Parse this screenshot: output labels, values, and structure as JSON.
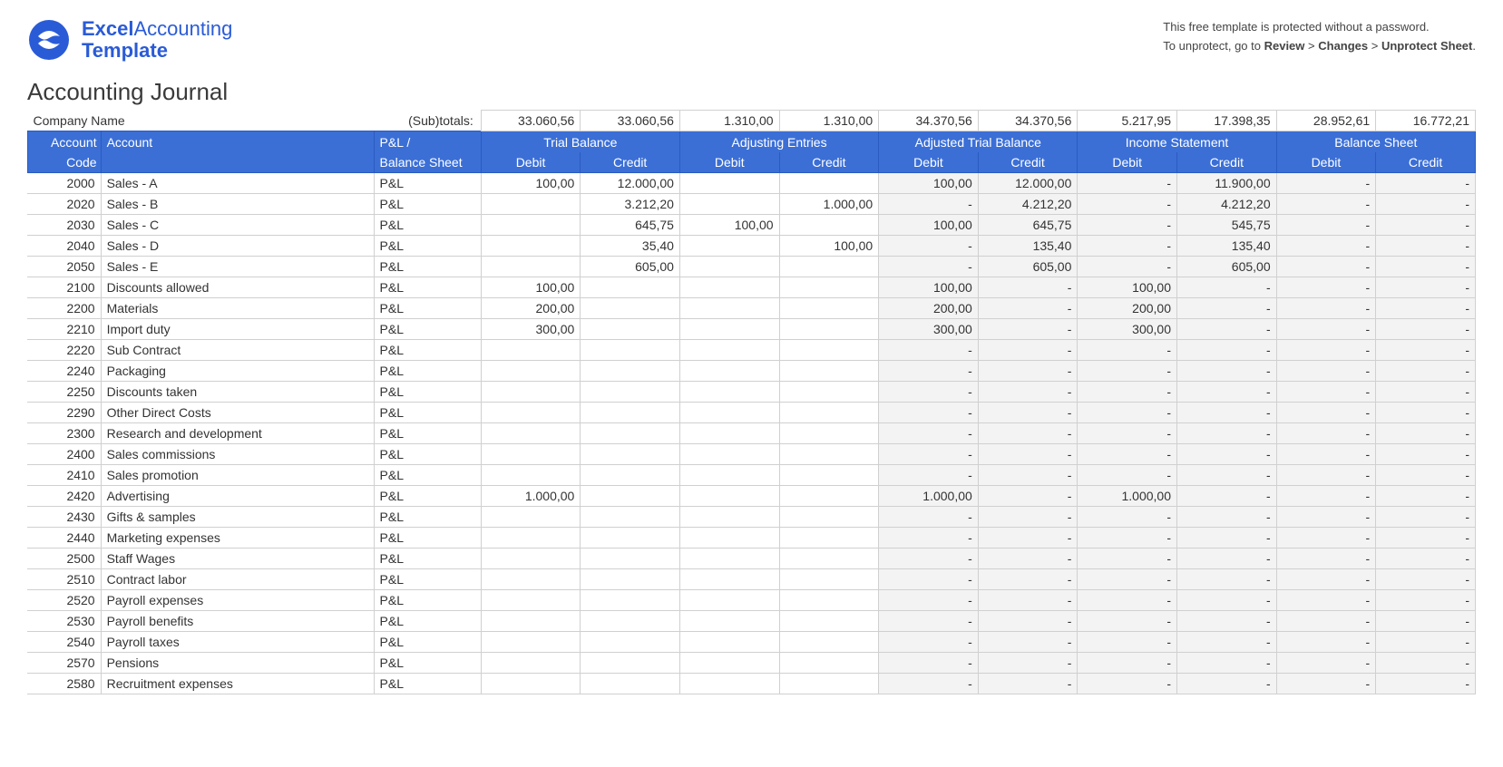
{
  "logo": {
    "word1": "Excel",
    "word2": "Accounting",
    "word3": "Template",
    "icon_bg": "#2a5bd7",
    "icon_fg": "#ffffff"
  },
  "notice": {
    "line1": "This free template is protected without a password.",
    "line2_pre": "To unprotect, go to ",
    "bold1": "Review",
    "sep1": " > ",
    "bold2": "Changes",
    "sep2": " > ",
    "bold3": "Unprotect Sheet",
    "tail": "."
  },
  "title": "Accounting Journal",
  "company_label": "Company Name",
  "subtotals_label": "(Sub)totals:",
  "subtotals": [
    "33.060,56",
    "33.060,56",
    "1.310,00",
    "1.310,00",
    "34.370,56",
    "34.370,56",
    "5.217,95",
    "17.398,35",
    "28.952,61",
    "16.772,21"
  ],
  "header": {
    "account_code": "Account Code",
    "account": "Account",
    "type_l1": "P&L /",
    "type_l2": "Balance Sheet",
    "groups": [
      "Trial Balance",
      "Adjusting Entries",
      "Adjusted Trial Balance",
      "Income Statement",
      "Balance Sheet"
    ],
    "debit": "Debit",
    "credit": "Credit"
  },
  "colors": {
    "header_bg": "#3b6fd6",
    "header_border": "#2a5bc0",
    "grid": "#d0d0d0",
    "computed_bg": "#f3f3f3",
    "editable_bg": "#ffffff",
    "text": "#333333"
  },
  "rows": [
    {
      "code": "2000",
      "account": "Sales - A",
      "type": "P&L",
      "tb_d": "100,00",
      "tb_c": "12.000,00",
      "ae_d": "",
      "ae_c": "",
      "atb_d": "100,00",
      "atb_c": "12.000,00",
      "is_d": "-",
      "is_c": "11.900,00",
      "bs_d": "-",
      "bs_c": "-"
    },
    {
      "code": "2020",
      "account": "Sales - B",
      "type": "P&L",
      "tb_d": "",
      "tb_c": "3.212,20",
      "ae_d": "",
      "ae_c": "1.000,00",
      "atb_d": "-",
      "atb_c": "4.212,20",
      "is_d": "-",
      "is_c": "4.212,20",
      "bs_d": "-",
      "bs_c": "-"
    },
    {
      "code": "2030",
      "account": "Sales - C",
      "type": "P&L",
      "tb_d": "",
      "tb_c": "645,75",
      "ae_d": "100,00",
      "ae_c": "",
      "atb_d": "100,00",
      "atb_c": "645,75",
      "is_d": "-",
      "is_c": "545,75",
      "bs_d": "-",
      "bs_c": "-"
    },
    {
      "code": "2040",
      "account": "Sales - D",
      "type": "P&L",
      "tb_d": "",
      "tb_c": "35,40",
      "ae_d": "",
      "ae_c": "100,00",
      "atb_d": "-",
      "atb_c": "135,40",
      "is_d": "-",
      "is_c": "135,40",
      "bs_d": "-",
      "bs_c": "-"
    },
    {
      "code": "2050",
      "account": "Sales - E",
      "type": "P&L",
      "tb_d": "",
      "tb_c": "605,00",
      "ae_d": "",
      "ae_c": "",
      "atb_d": "-",
      "atb_c": "605,00",
      "is_d": "-",
      "is_c": "605,00",
      "bs_d": "-",
      "bs_c": "-"
    },
    {
      "code": "2100",
      "account": "Discounts allowed",
      "type": "P&L",
      "tb_d": "100,00",
      "tb_c": "",
      "ae_d": "",
      "ae_c": "",
      "atb_d": "100,00",
      "atb_c": "-",
      "is_d": "100,00",
      "is_c": "-",
      "bs_d": "-",
      "bs_c": "-"
    },
    {
      "code": "2200",
      "account": "Materials",
      "type": "P&L",
      "tb_d": "200,00",
      "tb_c": "",
      "ae_d": "",
      "ae_c": "",
      "atb_d": "200,00",
      "atb_c": "-",
      "is_d": "200,00",
      "is_c": "-",
      "bs_d": "-",
      "bs_c": "-"
    },
    {
      "code": "2210",
      "account": "Import duty",
      "type": "P&L",
      "tb_d": "300,00",
      "tb_c": "",
      "ae_d": "",
      "ae_c": "",
      "atb_d": "300,00",
      "atb_c": "-",
      "is_d": "300,00",
      "is_c": "-",
      "bs_d": "-",
      "bs_c": "-"
    },
    {
      "code": "2220",
      "account": "Sub Contract",
      "type": "P&L",
      "tb_d": "",
      "tb_c": "",
      "ae_d": "",
      "ae_c": "",
      "atb_d": "-",
      "atb_c": "-",
      "is_d": "-",
      "is_c": "-",
      "bs_d": "-",
      "bs_c": "-"
    },
    {
      "code": "2240",
      "account": "Packaging",
      "type": "P&L",
      "tb_d": "",
      "tb_c": "",
      "ae_d": "",
      "ae_c": "",
      "atb_d": "-",
      "atb_c": "-",
      "is_d": "-",
      "is_c": "-",
      "bs_d": "-",
      "bs_c": "-"
    },
    {
      "code": "2250",
      "account": "Discounts taken",
      "type": "P&L",
      "tb_d": "",
      "tb_c": "",
      "ae_d": "",
      "ae_c": "",
      "atb_d": "-",
      "atb_c": "-",
      "is_d": "-",
      "is_c": "-",
      "bs_d": "-",
      "bs_c": "-"
    },
    {
      "code": "2290",
      "account": "Other Direct Costs",
      "type": "P&L",
      "tb_d": "",
      "tb_c": "",
      "ae_d": "",
      "ae_c": "",
      "atb_d": "-",
      "atb_c": "-",
      "is_d": "-",
      "is_c": "-",
      "bs_d": "-",
      "bs_c": "-"
    },
    {
      "code": "2300",
      "account": "Research and development",
      "type": "P&L",
      "tb_d": "",
      "tb_c": "",
      "ae_d": "",
      "ae_c": "",
      "atb_d": "-",
      "atb_c": "-",
      "is_d": "-",
      "is_c": "-",
      "bs_d": "-",
      "bs_c": "-"
    },
    {
      "code": "2400",
      "account": "Sales commissions",
      "type": "P&L",
      "tb_d": "",
      "tb_c": "",
      "ae_d": "",
      "ae_c": "",
      "atb_d": "-",
      "atb_c": "-",
      "is_d": "-",
      "is_c": "-",
      "bs_d": "-",
      "bs_c": "-"
    },
    {
      "code": "2410",
      "account": "Sales promotion",
      "type": "P&L",
      "tb_d": "",
      "tb_c": "",
      "ae_d": "",
      "ae_c": "",
      "atb_d": "-",
      "atb_c": "-",
      "is_d": "-",
      "is_c": "-",
      "bs_d": "-",
      "bs_c": "-"
    },
    {
      "code": "2420",
      "account": "Advertising",
      "type": "P&L",
      "tb_d": "1.000,00",
      "tb_c": "",
      "ae_d": "",
      "ae_c": "",
      "atb_d": "1.000,00",
      "atb_c": "-",
      "is_d": "1.000,00",
      "is_c": "-",
      "bs_d": "-",
      "bs_c": "-"
    },
    {
      "code": "2430",
      "account": "Gifts & samples",
      "type": "P&L",
      "tb_d": "",
      "tb_c": "",
      "ae_d": "",
      "ae_c": "",
      "atb_d": "-",
      "atb_c": "-",
      "is_d": "-",
      "is_c": "-",
      "bs_d": "-",
      "bs_c": "-"
    },
    {
      "code": "2440",
      "account": "Marketing expenses",
      "type": "P&L",
      "tb_d": "",
      "tb_c": "",
      "ae_d": "",
      "ae_c": "",
      "atb_d": "-",
      "atb_c": "-",
      "is_d": "-",
      "is_c": "-",
      "bs_d": "-",
      "bs_c": "-"
    },
    {
      "code": "2500",
      "account": "Staff Wages",
      "type": "P&L",
      "tb_d": "",
      "tb_c": "",
      "ae_d": "",
      "ae_c": "",
      "atb_d": "-",
      "atb_c": "-",
      "is_d": "-",
      "is_c": "-",
      "bs_d": "-",
      "bs_c": "-"
    },
    {
      "code": "2510",
      "account": "Contract labor",
      "type": "P&L",
      "tb_d": "",
      "tb_c": "",
      "ae_d": "",
      "ae_c": "",
      "atb_d": "-",
      "atb_c": "-",
      "is_d": "-",
      "is_c": "-",
      "bs_d": "-",
      "bs_c": "-"
    },
    {
      "code": "2520",
      "account": "Payroll expenses",
      "type": "P&L",
      "tb_d": "",
      "tb_c": "",
      "ae_d": "",
      "ae_c": "",
      "atb_d": "-",
      "atb_c": "-",
      "is_d": "-",
      "is_c": "-",
      "bs_d": "-",
      "bs_c": "-"
    },
    {
      "code": "2530",
      "account": "Payroll benefits",
      "type": "P&L",
      "tb_d": "",
      "tb_c": "",
      "ae_d": "",
      "ae_c": "",
      "atb_d": "-",
      "atb_c": "-",
      "is_d": "-",
      "is_c": "-",
      "bs_d": "-",
      "bs_c": "-"
    },
    {
      "code": "2540",
      "account": "Payroll taxes",
      "type": "P&L",
      "tb_d": "",
      "tb_c": "",
      "ae_d": "",
      "ae_c": "",
      "atb_d": "-",
      "atb_c": "-",
      "is_d": "-",
      "is_c": "-",
      "bs_d": "-",
      "bs_c": "-"
    },
    {
      "code": "2570",
      "account": "Pensions",
      "type": "P&L",
      "tb_d": "",
      "tb_c": "",
      "ae_d": "",
      "ae_c": "",
      "atb_d": "-",
      "atb_c": "-",
      "is_d": "-",
      "is_c": "-",
      "bs_d": "-",
      "bs_c": "-"
    },
    {
      "code": "2580",
      "account": "Recruitment expenses",
      "type": "P&L",
      "tb_d": "",
      "tb_c": "",
      "ae_d": "",
      "ae_c": "",
      "atb_d": "-",
      "atb_c": "-",
      "is_d": "-",
      "is_c": "-",
      "bs_d": "-",
      "bs_c": "-"
    }
  ]
}
